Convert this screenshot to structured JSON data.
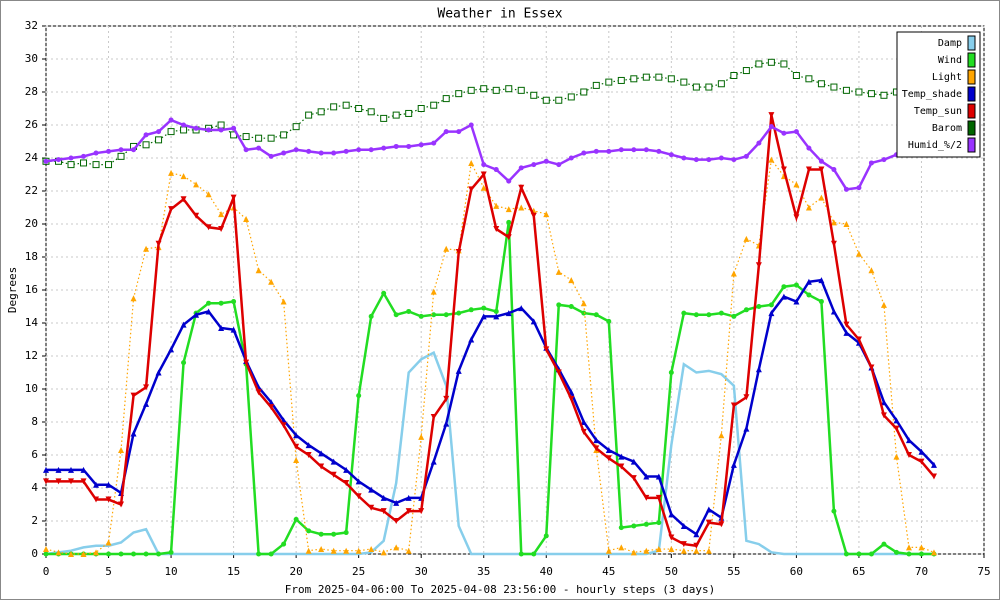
{
  "chart_data": {
    "type": "line",
    "title": "Weather in Essex",
    "x_label": "From 2025-04-06:00 To 2025-04-08 23:56:00 - hourly steps (3 days)",
    "y_label": "Degrees",
    "x": [
      0,
      1,
      2,
      3,
      4,
      5,
      6,
      7,
      8,
      9,
      10,
      11,
      12,
      13,
      14,
      15,
      16,
      17,
      18,
      19,
      20,
      21,
      22,
      23,
      24,
      25,
      26,
      27,
      28,
      29,
      30,
      31,
      32,
      33,
      34,
      35,
      36,
      37,
      38,
      39,
      40,
      41,
      42,
      43,
      44,
      45,
      46,
      47,
      48,
      49,
      50,
      51,
      52,
      53,
      54,
      55,
      56,
      57,
      58,
      59,
      60,
      61,
      62,
      63,
      64,
      65,
      66,
      67,
      68,
      69,
      70,
      71
    ],
    "xlim": [
      0,
      75
    ],
    "xticks": [
      0,
      5,
      10,
      15,
      20,
      25,
      30,
      35,
      40,
      45,
      50,
      55,
      60,
      65,
      70,
      75
    ],
    "ylim": [
      0,
      32
    ],
    "yticks": [
      0,
      2,
      4,
      6,
      8,
      10,
      12,
      14,
      16,
      18,
      20,
      22,
      24,
      26,
      28,
      30,
      32
    ],
    "grid": true,
    "legend": "top-right",
    "series": [
      {
        "name": "Damp",
        "color": "#87ceeb",
        "style": "solid",
        "marker": "none",
        "values": [
          0,
          0.1,
          0.2,
          0.4,
          0.5,
          0.5,
          0.7,
          1.3,
          1.5,
          0,
          0,
          0,
          0,
          0,
          0,
          0,
          0,
          0,
          0,
          0,
          0,
          0,
          0,
          0,
          0,
          0,
          0.1,
          0.8,
          4.3,
          11.0,
          11.8,
          12.2,
          10.2,
          1.7,
          0,
          0,
          0,
          0,
          0,
          0,
          0,
          0,
          0,
          0,
          0,
          0,
          0,
          0,
          0,
          0.2,
          6.6,
          11.5,
          11.0,
          11.1,
          10.9,
          10.2,
          0.8,
          0.6,
          0.1,
          0,
          0,
          0,
          0,
          0,
          0,
          0,
          0,
          0,
          0,
          0,
          0,
          0
        ]
      },
      {
        "name": "Wind",
        "color": "#22dd22",
        "style": "solid",
        "marker": "circle",
        "values": [
          0,
          0,
          0,
          0,
          0,
          0,
          0,
          0,
          0,
          0,
          0.1,
          11.6,
          14.6,
          15.2,
          15.2,
          15.3,
          11.5,
          0,
          0,
          0.6,
          2.1,
          1.4,
          1.2,
          1.2,
          1.3,
          9.6,
          14.4,
          15.8,
          14.5,
          14.7,
          14.4,
          14.5,
          14.5,
          14.6,
          14.8,
          14.9,
          14.7,
          20.1,
          0,
          0,
          1.1,
          15.1,
          15.0,
          14.6,
          14.5,
          14.1,
          1.6,
          1.7,
          1.8,
          1.9,
          11.0,
          14.6,
          14.5,
          14.5,
          14.6,
          14.4,
          14.8,
          15.0,
          15.1,
          16.2,
          16.3,
          15.7,
          15.3,
          2.6,
          0,
          0,
          0,
          0.6,
          0.1,
          0,
          0,
          0
        ]
      },
      {
        "name": "Light",
        "color": "#ffa500",
        "style": "dotted",
        "marker": "triangle",
        "values": [
          0.3,
          0.1,
          0,
          0,
          0.1,
          0.7,
          6.3,
          15.5,
          18.5,
          18.6,
          23.1,
          22.9,
          22.4,
          21.8,
          20.6,
          21.0,
          20.3,
          17.2,
          16.5,
          15.3,
          5.7,
          0.2,
          0.3,
          0.2,
          0.2,
          0.2,
          0.3,
          0.1,
          0.4,
          0.2,
          7.1,
          15.9,
          18.5,
          18.4,
          23.7,
          22.2,
          21.1,
          20.9,
          21.0,
          20.8,
          20.6,
          17.1,
          16.6,
          15.2,
          6.3,
          0.2,
          0.4,
          0.1,
          0.2,
          0.3,
          0.3,
          0.2,
          0.2,
          0.2,
          7.2,
          17.0,
          19.1,
          18.7,
          23.9,
          22.9,
          22.4,
          21.0,
          21.6,
          20.1,
          20.0,
          18.2,
          17.2,
          15.1,
          5.9,
          0.4,
          0.4,
          0.1
        ]
      },
      {
        "name": "Temp_shade",
        "color": "#0000cc",
        "style": "solid",
        "marker": "triangle",
        "values": [
          5.1,
          5.1,
          5.1,
          5.1,
          4.2,
          4.2,
          3.7,
          7.3,
          9.1,
          11.0,
          12.4,
          13.9,
          14.5,
          14.7,
          13.7,
          13.6,
          11.7,
          10.1,
          9.2,
          8.1,
          7.2,
          6.6,
          6.1,
          5.6,
          5.1,
          4.4,
          3.9,
          3.4,
          3.1,
          3.4,
          3.4,
          5.6,
          7.9,
          11.1,
          13.0,
          14.4,
          14.4,
          14.6,
          14.9,
          14.1,
          12.5,
          11.2,
          9.8,
          8.0,
          6.9,
          6.3,
          5.9,
          5.6,
          4.7,
          4.7,
          2.4,
          1.7,
          1.2,
          2.7,
          2.2,
          5.4,
          7.6,
          11.2,
          14.6,
          15.6,
          15.3,
          16.5,
          16.6,
          14.7,
          13.4,
          12.8,
          11.3,
          9.2,
          8.1,
          6.9,
          6.2,
          5.4
        ]
      },
      {
        "name": "Temp_sun",
        "color": "#dd0000",
        "style": "solid",
        "marker": "triangle-down",
        "values": [
          4.4,
          4.4,
          4.4,
          4.4,
          3.3,
          3.3,
          3.0,
          9.6,
          10.1,
          18.8,
          20.9,
          21.5,
          20.5,
          19.8,
          19.7,
          21.6,
          11.6,
          9.8,
          8.9,
          7.8,
          6.5,
          6.0,
          5.3,
          4.8,
          4.3,
          3.5,
          2.8,
          2.6,
          2.0,
          2.6,
          2.6,
          8.3,
          9.4,
          18.3,
          22.1,
          23.0,
          19.7,
          19.2,
          22.2,
          20.5,
          12.4,
          11.0,
          9.4,
          7.4,
          6.4,
          5.8,
          5.3,
          4.6,
          3.4,
          3.4,
          1.0,
          0.6,
          0.5,
          1.9,
          1.8,
          9.0,
          9.5,
          17.5,
          26.6,
          23.3,
          20.4,
          23.3,
          23.3,
          18.8,
          13.9,
          13.0,
          11.3,
          8.4,
          7.6,
          6.0,
          5.6,
          4.7
        ]
      },
      {
        "name": "Barom",
        "color": "#006600",
        "style": "dotted",
        "marker": "square",
        "values": [
          23.8,
          23.8,
          23.6,
          23.7,
          23.6,
          23.6,
          24.1,
          24.7,
          24.8,
          25.1,
          25.6,
          25.7,
          25.7,
          25.8,
          26.0,
          25.4,
          25.3,
          25.2,
          25.2,
          25.4,
          25.9,
          26.6,
          26.8,
          27.1,
          27.2,
          27.0,
          26.8,
          26.4,
          26.6,
          26.7,
          27.0,
          27.2,
          27.6,
          27.9,
          28.1,
          28.2,
          28.1,
          28.2,
          28.1,
          27.8,
          27.5,
          27.5,
          27.7,
          28.0,
          28.4,
          28.6,
          28.7,
          28.8,
          28.9,
          28.9,
          28.8,
          28.6,
          28.3,
          28.3,
          28.5,
          29.0,
          29.3,
          29.7,
          29.8,
          29.7,
          29.0,
          28.8,
          28.5,
          28.3,
          28.1,
          28.0,
          27.9,
          27.8,
          28.0,
          28.1,
          28.2,
          28.3
        ]
      },
      {
        "name": "Humid_%/2",
        "color": "#9933ff",
        "style": "solid",
        "marker": "circle",
        "values": [
          23.8,
          23.9,
          24.0,
          24.1,
          24.3,
          24.4,
          24.5,
          24.5,
          25.4,
          25.6,
          26.3,
          26.0,
          25.8,
          25.7,
          25.7,
          25.8,
          24.5,
          24.6,
          24.1,
          24.3,
          24.5,
          24.4,
          24.3,
          24.3,
          24.4,
          24.5,
          24.5,
          24.6,
          24.7,
          24.7,
          24.8,
          24.9,
          25.6,
          25.6,
          26.0,
          23.6,
          23.3,
          22.6,
          23.4,
          23.6,
          23.8,
          23.6,
          24.0,
          24.3,
          24.4,
          24.4,
          24.5,
          24.5,
          24.5,
          24.4,
          24.2,
          24.0,
          23.9,
          23.9,
          24.0,
          23.9,
          24.1,
          24.9,
          25.9,
          25.5,
          25.6,
          24.6,
          23.8,
          23.3,
          22.1,
          22.2,
          23.7,
          23.9,
          24.2,
          24.4,
          24.5,
          24.6
        ]
      }
    ]
  }
}
